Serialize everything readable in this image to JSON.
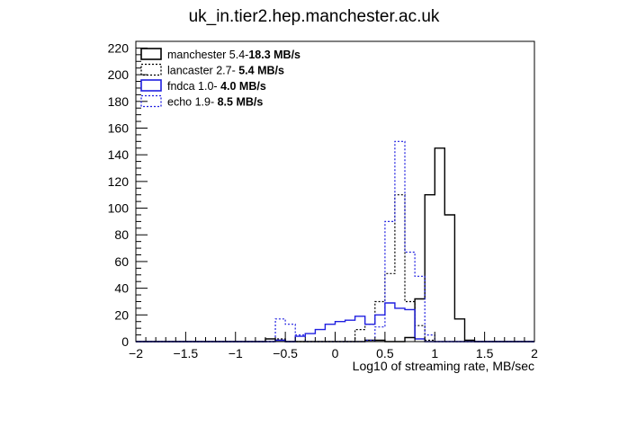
{
  "chart_data": {
    "type": "histogram",
    "title": "uk_in.tier2.hep.manchester.ac.uk",
    "xlabel": "Log10  of streaming rate, MB/sec",
    "ylabel": "",
    "xlim": [
      -2,
      2
    ],
    "ylim": [
      0,
      225
    ],
    "x_ticks": [
      -2,
      -1.5,
      -1,
      -0.5,
      0,
      0.5,
      1,
      1.5,
      2
    ],
    "x_tick_labels": [
      "−2",
      "−1.5",
      "−1",
      "−0.5",
      "0",
      "0.5",
      "1",
      "1.5",
      "2"
    ],
    "y_ticks": [
      0,
      20,
      40,
      60,
      80,
      100,
      120,
      140,
      160,
      180,
      200,
      220
    ],
    "y_tick_labels": [
      "0",
      "20",
      "40",
      "60",
      "80",
      "100",
      "120",
      "140",
      "160",
      "180",
      "200",
      "220"
    ],
    "bin_width": 0.1,
    "grid": false,
    "legend_position": "top-left",
    "series": [
      {
        "name": "manchester",
        "legend_range": "5.4-",
        "legend_range_bold": "18.3 MB/s",
        "color": "#000000",
        "style": "solid",
        "bins": [
          [
            -0.7,
            2
          ],
          [
            -0.6,
            1
          ],
          [
            0.3,
            1
          ],
          [
            0.4,
            1
          ],
          [
            0.7,
            3
          ],
          [
            0.8,
            32
          ],
          [
            0.9,
            110
          ],
          [
            1.0,
            145
          ],
          [
            1.1,
            95
          ],
          [
            1.2,
            17
          ],
          [
            1.3,
            1
          ]
        ]
      },
      {
        "name": "lancaster",
        "legend_range": "2.7- ",
        "legend_range_bold": "5.4 MB/s",
        "color": "#000000",
        "style": "dotted",
        "bins": [
          [
            -0.6,
            2
          ],
          [
            0.2,
            9
          ],
          [
            0.3,
            13
          ],
          [
            0.4,
            30
          ],
          [
            0.5,
            51
          ],
          [
            0.6,
            110
          ],
          [
            0.7,
            30
          ],
          [
            0.8,
            12
          ],
          [
            0.9,
            1
          ]
        ]
      },
      {
        "name": "fndca",
        "legend_range": "1.0- ",
        "legend_range_bold": "4.0 MB/s",
        "color": "#1f1fe0",
        "style": "solid",
        "bins": [
          [
            -0.6,
            1
          ],
          [
            -0.4,
            4
          ],
          [
            -0.3,
            6
          ],
          [
            -0.2,
            9
          ],
          [
            -0.1,
            13
          ],
          [
            0.0,
            15
          ],
          [
            0.1,
            16
          ],
          [
            0.2,
            19
          ],
          [
            0.3,
            13
          ],
          [
            0.4,
            20
          ],
          [
            0.5,
            29
          ],
          [
            0.6,
            25
          ],
          [
            0.7,
            24
          ],
          [
            0.8,
            2
          ]
        ]
      },
      {
        "name": "echo",
        "legend_range": "1.9- ",
        "legend_range_bold": "8.5 MB/s",
        "color": "#1f1fe0",
        "style": "dotted",
        "bins": [
          [
            -0.6,
            17
          ],
          [
            -0.5,
            13
          ],
          [
            -0.4,
            5
          ],
          [
            0.3,
            1
          ],
          [
            0.4,
            11
          ],
          [
            0.5,
            90
          ],
          [
            0.6,
            150
          ],
          [
            0.7,
            67
          ],
          [
            0.8,
            49
          ],
          [
            0.9,
            5
          ]
        ]
      }
    ]
  }
}
